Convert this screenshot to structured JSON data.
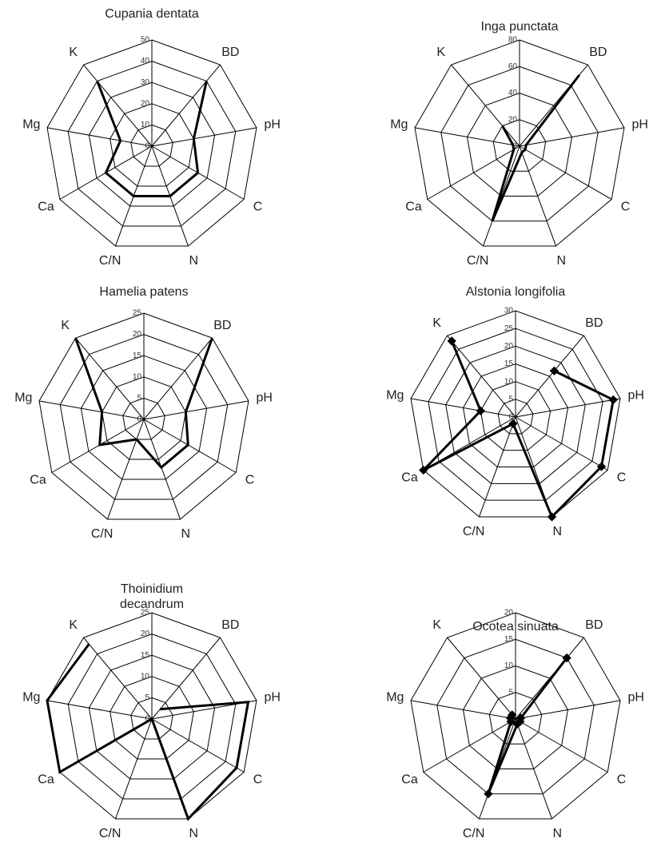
{
  "chart_data": [
    {
      "type": "radar",
      "title": "Cupania dentata",
      "categories": [
        null,
        "BD",
        "pH",
        "C",
        "N",
        "C/N",
        "Ca",
        "Mg",
        "K"
      ],
      "values": [
        null,
        40,
        20,
        25,
        25,
        25,
        25,
        15,
        40
      ],
      "ylim": [
        0,
        50
      ],
      "yticks": [
        0,
        10,
        20,
        30,
        40,
        50
      ],
      "color": "#000000",
      "markers": false
    },
    {
      "type": "radar",
      "title": "Inga punctata",
      "categories": [
        null,
        "BD",
        "pH",
        "C",
        "N",
        "C/N",
        "Ca",
        "Mg",
        "K"
      ],
      "values": [
        null,
        70,
        5,
        5,
        5,
        60,
        5,
        5,
        20
      ],
      "ylim": [
        0,
        80
      ],
      "yticks": [
        0,
        20,
        40,
        60,
        80
      ],
      "color": "#000000",
      "markers": false
    },
    {
      "type": "radar",
      "title": "Hamelia patens",
      "categories": [
        null,
        "BD",
        "pH",
        "C",
        "N",
        "C/N",
        "Ca",
        "Mg",
        "K"
      ],
      "values": [
        null,
        25,
        10,
        12,
        12,
        5,
        12,
        10,
        25
      ],
      "ylim": [
        0,
        25
      ],
      "yticks": [
        0,
        5,
        10,
        15,
        20,
        25
      ],
      "color": "#000000",
      "markers": false
    },
    {
      "type": "radar",
      "title": "Alstonia longifolia",
      "categories": [
        null,
        "BD",
        "pH",
        "C",
        "N",
        "C/N",
        "Ca",
        "Mg",
        "K"
      ],
      "values": [
        null,
        17,
        28,
        28,
        30,
        2,
        30,
        10,
        28
      ],
      "ylim": [
        0,
        30
      ],
      "yticks": [
        0,
        5,
        10,
        15,
        20,
        25,
        30
      ],
      "color": "#000000",
      "markers": true
    },
    {
      "type": "radar",
      "title": "Thoinidium decandrum",
      "categories": [
        null,
        "BD",
        "pH",
        "C",
        "N",
        "C/N",
        "Ca",
        "Mg",
        "K"
      ],
      "values": [
        null,
        3,
        23,
        23,
        25,
        0,
        25,
        25,
        23
      ],
      "ylim": [
        0,
        25
      ],
      "yticks": [
        0,
        5,
        10,
        15,
        20,
        25
      ],
      "color": "#000000",
      "markers": false
    },
    {
      "type": "radar",
      "title": "Ocotea sinuata",
      "categories": [
        null,
        "BD",
        "pH",
        "C",
        "N",
        "C/N",
        "Ca",
        "Mg",
        "K"
      ],
      "values": [
        null,
        15,
        1,
        1,
        1,
        15,
        1,
        1,
        1
      ],
      "ylim": [
        0,
        20
      ],
      "yticks": [
        0,
        5,
        10,
        15,
        20
      ],
      "color": "#000000",
      "markers": true
    }
  ]
}
